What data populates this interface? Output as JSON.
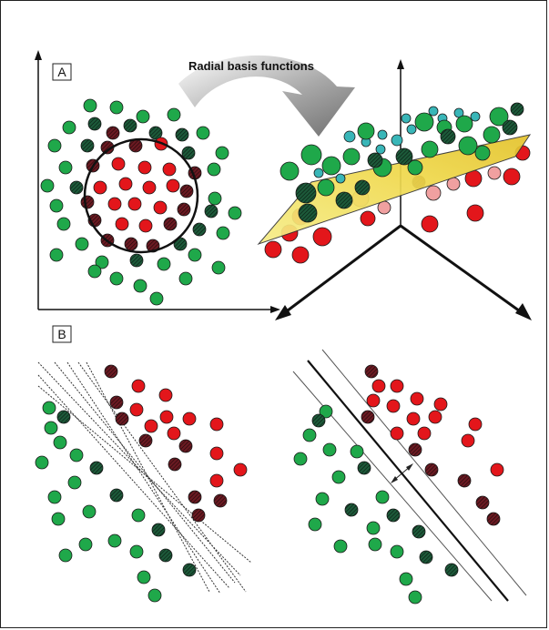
{
  "panels": {
    "a_label": "A",
    "b_label": "B"
  },
  "transform": {
    "label": "Radial basis functions"
  },
  "colors": {
    "green": "#1fa84a",
    "red": "#e3161b",
    "dark_green": "#1d5a3a",
    "dark_red": "#6b1a22",
    "light_red": "#f0a0a0",
    "teal": "#39b6b8",
    "plane": "#f2e25a",
    "arrow_gray": "#8c8c8c"
  },
  "icons": [
    "curved-arrow-icon",
    "double-arrow-icon"
  ]
}
